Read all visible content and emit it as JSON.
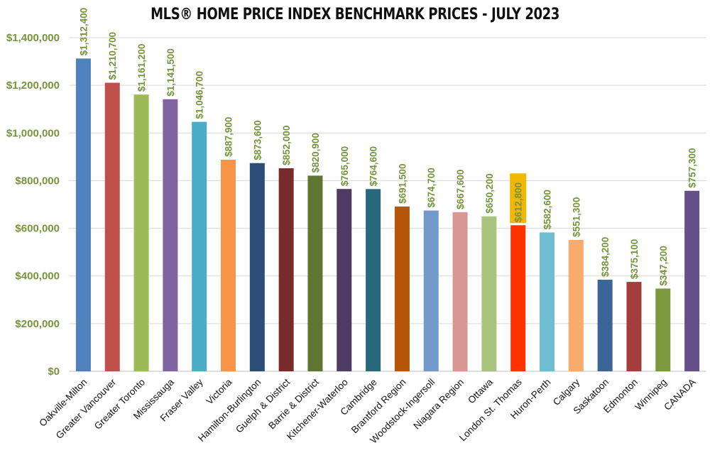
{
  "chart_data": {
    "type": "bar",
    "title": "MLS® HOME PRICE INDEX BENCHMARK PRICES - JULY 2023",
    "categories": [
      "Oakville-Milton",
      "Greater Vancouver",
      "Greater Toronto",
      "Mississauga",
      "Fraser Valley",
      "Victoria",
      "Hamilton-Burlington",
      "Guelph & District",
      "Barrie & District",
      "Kitchener-Waterloo",
      "Cambridge",
      "Brantford Region",
      "Woodstock-Ingersoll",
      "Niagara Region",
      "Ottawa",
      "London St. Thomas",
      "Huron-Perth",
      "Calgary",
      "Saskatoon",
      "Edmonton",
      "Winnipeg",
      "CANADA"
    ],
    "values": [
      1312400,
      1210700,
      1161200,
      1141500,
      1046700,
      887900,
      873600,
      852000,
      820900,
      765000,
      764600,
      691500,
      674700,
      667600,
      650200,
      612800,
      582600,
      551300,
      384200,
      375100,
      347200,
      757300
    ],
    "data_labels": [
      "$1,312,400",
      "$1,210,700",
      "$1,161,200",
      "$1,141,500",
      "$1,046,700",
      "$887,900",
      "$873,600",
      "$852,000",
      "$820,900",
      "$765,000",
      "$764,600",
      "$691,500",
      "$674,700",
      "$667,600",
      "$650,200",
      "$612,800",
      "$582,600",
      "$551,300",
      "$384,200",
      "$375,100",
      "$347,200",
      "$757,300"
    ],
    "colors": [
      "#4f81bd",
      "#c0504d",
      "#9bbb59",
      "#8064a2",
      "#4bacc6",
      "#f79646",
      "#2c4d75",
      "#772c2a",
      "#5f7530",
      "#4d3b62",
      "#276a7c",
      "#b65708",
      "#729aca",
      "#d99694",
      "#a9c47f",
      "#ff3300",
      "#6fbdd1",
      "#f9ab6b",
      "#3a6597",
      "#a33e3b",
      "#7b9a3d",
      "#65508a"
    ],
    "highlight_index": 15,
    "highlight_color": "#f2b705",
    "ylim": [
      0,
      1400000
    ],
    "yticks": [
      0,
      200000,
      400000,
      600000,
      800000,
      1000000,
      1200000,
      1400000
    ],
    "ytick_labels": [
      "$0",
      "$200,000",
      "$400,000",
      "$600,000",
      "$800,000",
      "$1,000,000",
      "$1,200,000",
      "$1,400,000"
    ],
    "label_color": "#77933c",
    "grid": true,
    "xlabel": "",
    "ylabel": ""
  }
}
